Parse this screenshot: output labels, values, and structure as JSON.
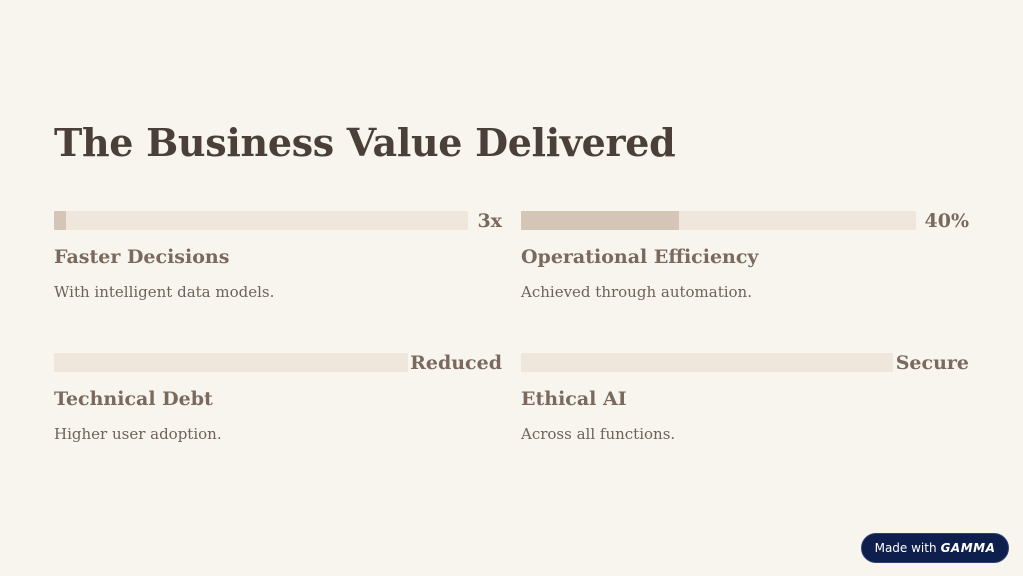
{
  "slide": {
    "title": "The Business Value Delivered"
  },
  "stats": [
    {
      "value": "3x",
      "heading": "Faster Decisions",
      "description": "With intelligent data models.",
      "fill_fraction": 0.03
    },
    {
      "value": "40%",
      "heading": "Operational Efficiency",
      "description": "Achieved through automation.",
      "fill_fraction": 0.4
    },
    {
      "value": "Reduced",
      "heading": "Technical Debt",
      "description": "Higher user adoption.",
      "fill_fraction": 0
    },
    {
      "value": "Secure",
      "heading": "Ethical AI",
      "description": "Across all functions.",
      "fill_fraction": 0
    }
  ],
  "badge": {
    "prefix": "Made with",
    "brand": "GAMMA"
  },
  "colors": {
    "background": "#f8f4ee",
    "title": "#4a4039",
    "accent_text": "#7a6a5e",
    "bar_track": "#efe6dc",
    "bar_fill": "#d4c5b6",
    "badge_bg": "#0f1f4d"
  }
}
